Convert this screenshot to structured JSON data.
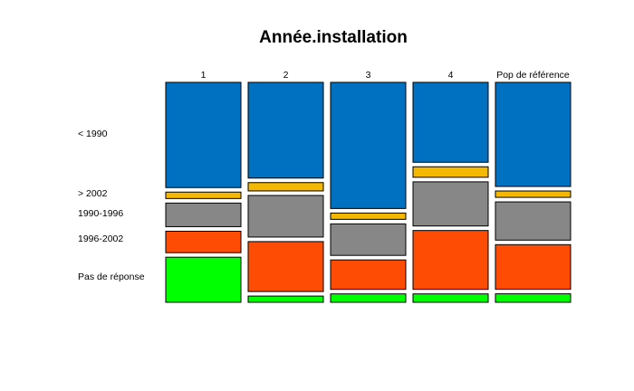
{
  "chart_data": {
    "type": "mosaic",
    "title": "Année.installation",
    "columns": [
      "1",
      "2",
      "3",
      "4",
      "Pop de référence"
    ],
    "row_labels": [
      "< 1990",
      "> 2002",
      "1990-1996",
      "1996-2002",
      "Pas de réponse"
    ],
    "colors": [
      "#0070c0",
      "#f5b800",
      "#878787",
      "#ff4c05",
      "#00ff00"
    ],
    "proportions": [
      [
        0.49,
        0.03,
        0.11,
        0.1,
        0.21
      ],
      [
        0.46,
        0.04,
        0.2,
        0.24,
        0.03
      ],
      [
        0.6,
        0.03,
        0.15,
        0.14,
        0.04
      ],
      [
        0.38,
        0.05,
        0.21,
        0.28,
        0.04
      ],
      [
        0.49,
        0.03,
        0.18,
        0.21,
        0.04
      ]
    ]
  }
}
